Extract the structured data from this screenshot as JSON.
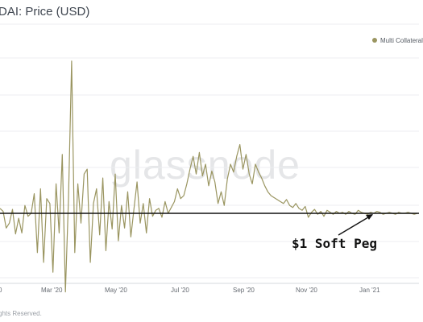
{
  "header": {
    "title": "DAI: Price (USD)"
  },
  "watermark": "glassnode",
  "legend": {
    "label": "Multi Collateral",
    "color": "#9a9560"
  },
  "annotation": {
    "label": "$1 Soft Peg"
  },
  "footer": {
    "text": "ghts Reserved."
  },
  "chart_data": {
    "type": "line",
    "title": "DAI: Price (USD)",
    "xlabel": "",
    "ylabel": "",
    "x_tick_labels": [
      "0",
      "Mar '20",
      "May '20",
      "Jul '20",
      "Sep '20",
      "Nov '20",
      "Jan '21"
    ],
    "y_tick_labels": [],
    "grid": true,
    "legend_position": "top-right",
    "reference_line": {
      "label": "$1 Soft Peg",
      "value": 1.0
    },
    "series": [
      {
        "name": "Multi Collateral",
        "color": "#9a9560",
        "x": [
          "2020-01-01",
          "2020-01-04",
          "2020-01-07",
          "2020-01-10",
          "2020-01-13",
          "2020-01-16",
          "2020-01-19",
          "2020-01-22",
          "2020-01-25",
          "2020-01-28",
          "2020-01-31",
          "2020-02-03",
          "2020-02-06",
          "2020-02-09",
          "2020-02-12",
          "2020-02-15",
          "2020-02-18",
          "2020-02-21",
          "2020-02-24",
          "2020-02-27",
          "2020-03-01",
          "2020-03-04",
          "2020-03-07",
          "2020-03-10",
          "2020-03-13",
          "2020-03-16",
          "2020-03-19",
          "2020-03-22",
          "2020-03-25",
          "2020-03-28",
          "2020-03-31",
          "2020-04-03",
          "2020-04-06",
          "2020-04-09",
          "2020-04-12",
          "2020-04-15",
          "2020-04-18",
          "2020-04-21",
          "2020-04-24",
          "2020-04-27",
          "2020-04-30",
          "2020-05-03",
          "2020-05-06",
          "2020-05-09",
          "2020-05-12",
          "2020-05-15",
          "2020-05-18",
          "2020-05-21",
          "2020-05-24",
          "2020-05-27",
          "2020-05-30",
          "2020-06-02",
          "2020-06-05",
          "2020-06-08",
          "2020-06-11",
          "2020-06-14",
          "2020-06-17",
          "2020-06-20",
          "2020-06-23",
          "2020-06-26",
          "2020-06-29",
          "2020-07-02",
          "2020-07-05",
          "2020-07-08",
          "2020-07-11",
          "2020-07-14",
          "2020-07-17",
          "2020-07-20",
          "2020-07-23",
          "2020-07-26",
          "2020-07-29",
          "2020-08-01",
          "2020-08-04",
          "2020-08-07",
          "2020-08-10",
          "2020-08-13",
          "2020-08-16",
          "2020-08-19",
          "2020-08-22",
          "2020-08-25",
          "2020-08-28",
          "2020-08-31",
          "2020-09-03",
          "2020-09-06",
          "2020-09-09",
          "2020-09-12",
          "2020-09-15",
          "2020-09-18",
          "2020-09-21",
          "2020-09-24",
          "2020-09-27",
          "2020-09-30",
          "2020-10-03",
          "2020-10-06",
          "2020-10-09",
          "2020-10-12",
          "2020-10-15",
          "2020-10-18",
          "2020-10-21",
          "2020-10-24",
          "2020-10-27",
          "2020-10-30",
          "2020-11-02",
          "2020-11-05",
          "2020-11-08",
          "2020-11-11",
          "2020-11-14",
          "2020-11-17",
          "2020-11-20",
          "2020-11-23",
          "2020-11-26",
          "2020-11-29",
          "2020-12-02",
          "2020-12-05",
          "2020-12-08",
          "2020-12-11",
          "2020-12-14",
          "2020-12-17",
          "2020-12-20",
          "2020-12-23",
          "2020-12-26",
          "2020-12-29",
          "2021-01-01",
          "2021-01-04",
          "2021-01-07",
          "2021-01-10",
          "2021-01-13",
          "2021-01-16",
          "2021-01-19",
          "2021-01-22",
          "2021-01-25",
          "2021-01-28",
          "2021-01-31",
          "2021-02-03",
          "2021-02-06"
        ],
        "values": [
          1.005,
          1.002,
          0.985,
          0.99,
          1.004,
          0.979,
          0.995,
          0.98,
          1.008,
          0.997,
          1.0,
          1.02,
          0.96,
          1.025,
          0.95,
          1.015,
          1.01,
          0.94,
          1.03,
          0.98,
          1.06,
          0.92,
          1.015,
          1.155,
          0.96,
          1.03,
          0.99,
          1.04,
          1.045,
          0.95,
          1.01,
          1.025,
          0.978,
          1.036,
          0.962,
          1.012,
          0.984,
          1.04,
          0.972,
          1.008,
          0.985,
          1.022,
          0.976,
          1.004,
          1.032,
          0.99,
          1.01,
          0.98,
          1.015,
          0.997,
          1.003,
          1.005,
          0.996,
          1.012,
          1.0,
          1.006,
          1.012,
          1.025,
          1.015,
          1.018,
          1.03,
          1.045,
          1.058,
          1.04,
          1.062,
          1.038,
          1.05,
          1.028,
          1.043,
          1.032,
          1.01,
          1.022,
          1.008,
          1.035,
          1.05,
          1.042,
          1.058,
          1.07,
          1.045,
          1.06,
          1.04,
          1.03,
          1.05,
          1.042,
          1.036,
          1.028,
          1.022,
          1.018,
          1.016,
          1.014,
          1.012,
          1.01,
          1.014,
          1.008,
          1.006,
          1.01,
          1.005,
          1.003,
          1.007,
          0.996,
          1.001,
          1.004,
          0.999,
          1.002,
          0.997,
          1.003,
          1.001,
          0.999,
          1.002,
          1.0,
          1.001,
          0.999,
          1.002,
          1.0,
          0.999,
          1.003,
          1.001,
          1.0,
          0.999,
          1.001,
          1.0,
          1.002,
          1.001,
          0.999,
          1.0,
          1.001,
          1.0,
          0.999,
          1.001,
          1.0,
          1.0,
          1.001,
          1.0,
          0.999,
          1.0
        ]
      }
    ]
  }
}
